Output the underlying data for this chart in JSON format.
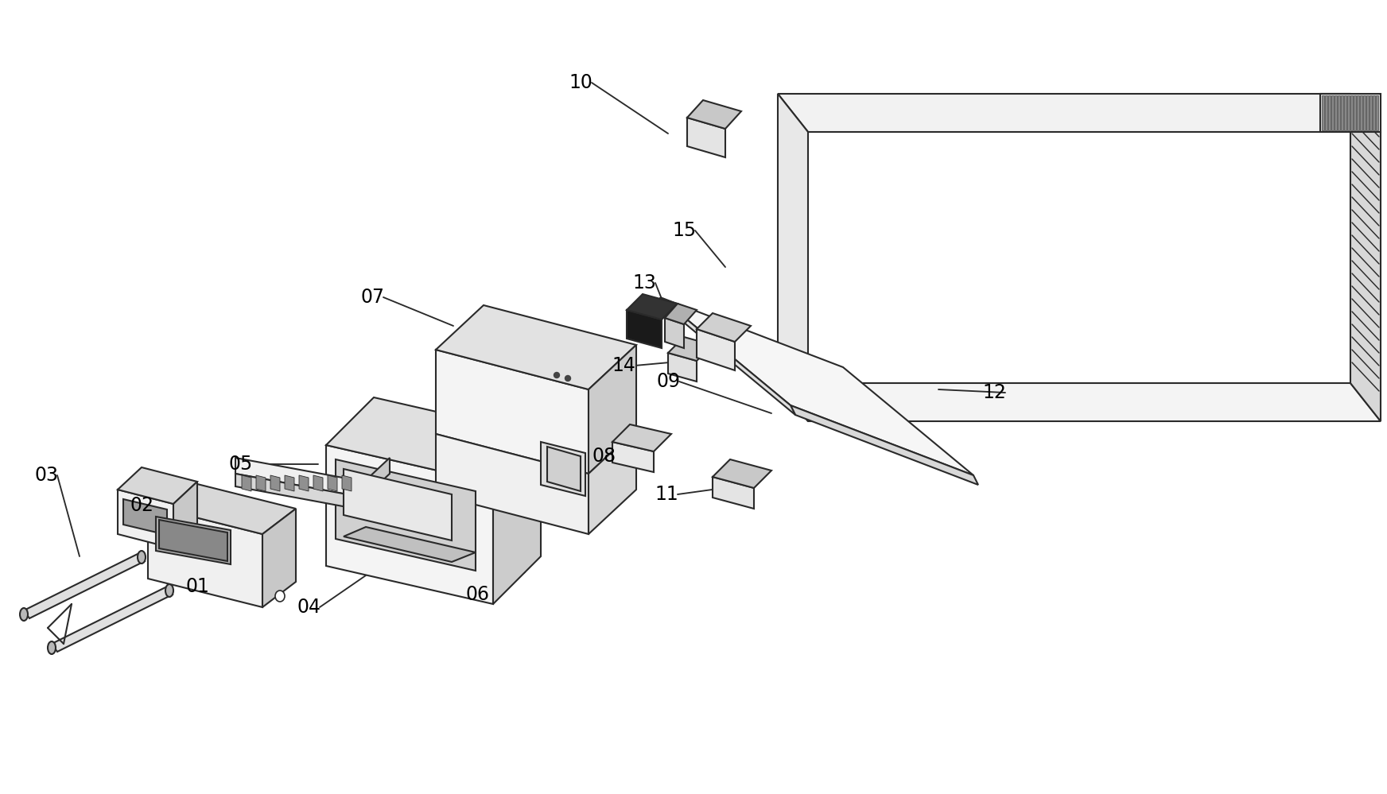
{
  "bg_color": "#ffffff",
  "line_color": "#2a2a2a",
  "lw": 1.5,
  "figsize": [
    17.44,
    9.99
  ],
  "dpi": 100,
  "labels": [
    [
      "01",
      248,
      738,
      310,
      718
    ],
    [
      "02",
      178,
      636,
      230,
      638
    ],
    [
      "03",
      58,
      598,
      100,
      700
    ],
    [
      "04",
      388,
      764,
      460,
      724
    ],
    [
      "05",
      303,
      584,
      400,
      584
    ],
    [
      "06",
      600,
      748,
      660,
      720
    ],
    [
      "07",
      468,
      374,
      570,
      410
    ],
    [
      "08",
      760,
      574,
      820,
      566
    ],
    [
      "09",
      840,
      480,
      970,
      520
    ],
    [
      "10",
      730,
      104,
      840,
      168
    ],
    [
      "11",
      838,
      622,
      910,
      614
    ],
    [
      "12",
      1250,
      494,
      1180,
      490
    ],
    [
      "13",
      810,
      356,
      840,
      396
    ],
    [
      "14",
      784,
      460,
      842,
      456
    ],
    [
      "15",
      860,
      290,
      912,
      336
    ]
  ]
}
